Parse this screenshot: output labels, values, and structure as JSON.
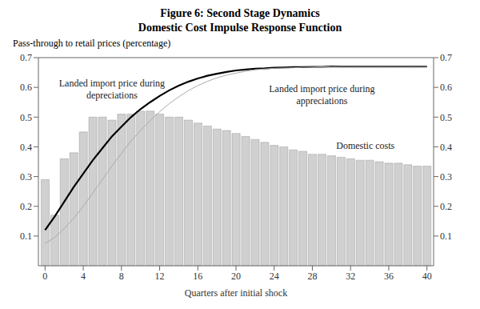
{
  "chart_data": {
    "type": "bar",
    "title": "Figure 6: Second Stage Dynamics",
    "subtitle": "Domestic Cost Impulse Response Function",
    "y_label": "Pass-through to retail prices (percentage)",
    "x_label": "Quarters after initial shock",
    "x": [
      0,
      1,
      2,
      3,
      4,
      5,
      6,
      7,
      8,
      9,
      10,
      11,
      12,
      13,
      14,
      15,
      16,
      17,
      18,
      19,
      20,
      21,
      22,
      23,
      24,
      25,
      26,
      27,
      28,
      29,
      30,
      31,
      32,
      33,
      34,
      35,
      36,
      37,
      38,
      39,
      40
    ],
    "xlim": [
      -0.7,
      40.7
    ],
    "xticks": [
      0,
      4,
      8,
      12,
      16,
      20,
      24,
      28,
      32,
      36,
      40
    ],
    "ylim": [
      0,
      0.7
    ],
    "yticks": [
      0.1,
      0.2,
      0.3,
      0.4,
      0.5,
      0.6,
      0.7
    ],
    "y2lim": [
      0,
      0.7
    ],
    "y2ticks": [
      0.1,
      0.2,
      0.3,
      0.4,
      0.5,
      0.6,
      0.7
    ],
    "grid": false,
    "series": [
      {
        "type": "bar",
        "color": "#d0d0d0",
        "values": [
          0.29,
          0.17,
          0.36,
          0.38,
          0.45,
          0.5,
          0.5,
          0.49,
          0.51,
          0.51,
          0.52,
          0.52,
          0.51,
          0.5,
          0.5,
          0.49,
          0.48,
          0.47,
          0.46,
          0.455,
          0.445,
          0.435,
          0.425,
          0.415,
          0.405,
          0.4,
          0.39,
          0.385,
          0.375,
          0.375,
          0.37,
          0.365,
          0.36,
          0.355,
          0.355,
          0.35,
          0.345,
          0.345,
          0.34,
          0.335,
          0.335
        ]
      },
      {
        "type": "line",
        "color": "#000000",
        "values": [
          0.12,
          0.165,
          0.215,
          0.265,
          0.31,
          0.355,
          0.395,
          0.435,
          0.468,
          0.5,
          0.527,
          0.55,
          0.571,
          0.59,
          0.606,
          0.619,
          0.63,
          0.639,
          0.646,
          0.652,
          0.657,
          0.66,
          0.663,
          0.664,
          0.666,
          0.667,
          0.668,
          0.668,
          0.669,
          0.669,
          0.67,
          0.67,
          0.67,
          0.67,
          0.67,
          0.67,
          0.67,
          0.67,
          0.67,
          0.67,
          0.67
        ]
      },
      {
        "type": "line",
        "color": "#aaaaaa",
        "values": [
          0.075,
          0.095,
          0.125,
          0.16,
          0.2,
          0.245,
          0.29,
          0.335,
          0.378,
          0.42,
          0.455,
          0.488,
          0.518,
          0.545,
          0.568,
          0.589,
          0.606,
          0.62,
          0.632,
          0.641,
          0.648,
          0.654,
          0.659,
          0.662,
          0.664,
          0.665,
          0.666,
          0.667,
          0.668,
          0.669,
          0.669,
          0.67,
          0.67,
          0.67,
          0.67,
          0.67,
          0.67,
          0.67,
          0.67,
          0.67,
          0.67
        ]
      }
    ],
    "annotations": [
      {
        "text": "Landed import price during\ndepreciations",
        "x": 7,
        "y": 0.595
      },
      {
        "text": "Landed import price during\nappreciations",
        "x": 29,
        "y": 0.575
      },
      {
        "text": "Domestic costs",
        "x": 30.5,
        "y": 0.405
      }
    ]
  }
}
